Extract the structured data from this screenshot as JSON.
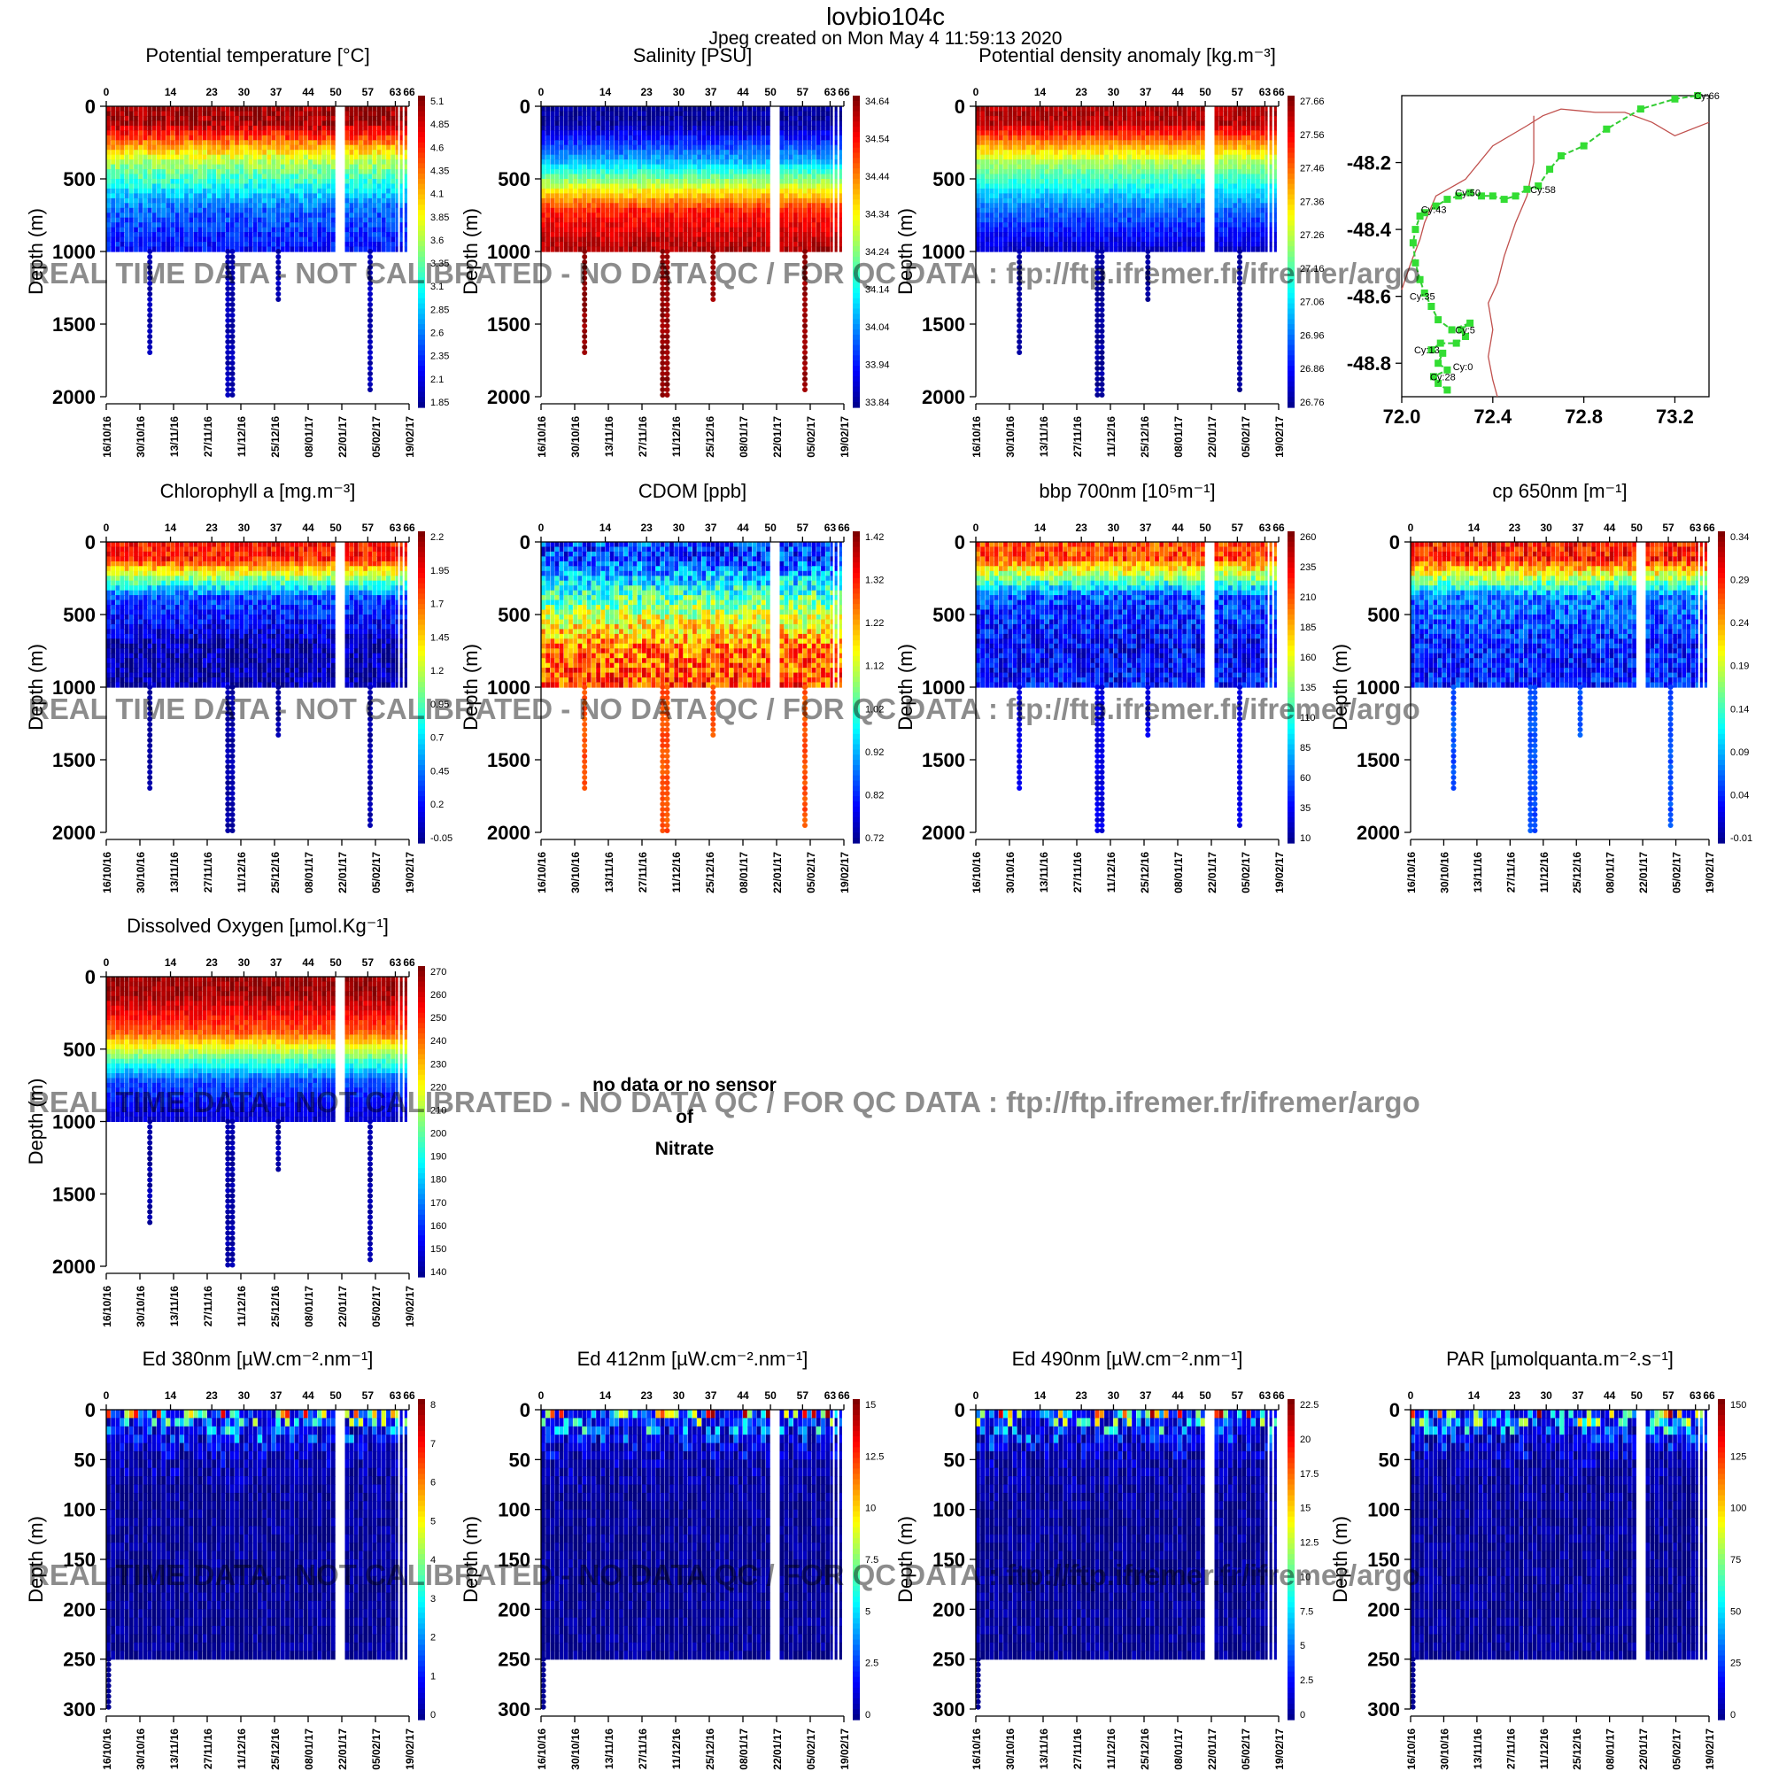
{
  "figure": {
    "title": "lovbio104c",
    "subtitle": "Jpeg created on  Mon May  4 11:59:13 2020",
    "watermark": "REAL TIME DATA - NOT CALIBRATED - NO DATA QC   /  FOR QC DATA : ftp://ftp.ifremer.fr/ifremer/argo",
    "no_data": [
      "no data or no sensor",
      "of",
      "Nitrate"
    ],
    "ylabel": "Depth (m)"
  },
  "chart_data": [
    {
      "id": "temp",
      "type": "heatmap",
      "title": "Potential temperature [°C]",
      "cycle_ticks": [
        "0",
        "14",
        "23",
        "30",
        "37",
        "44",
        "50",
        "57",
        "63",
        "66"
      ],
      "date_ticks": [
        "16/10/16",
        "30/10/16",
        "13/11/16",
        "27/11/16",
        "11/12/16",
        "25/12/16",
        "08/01/17",
        "22/01/17",
        "05/02/17",
        "19/02/17"
      ],
      "ylabel": "Depth (m)",
      "ylim": [
        0,
        2000
      ],
      "yticks": [
        "0",
        "500",
        "1000",
        "1500",
        "2000"
      ],
      "colorbar": [
        "5.1",
        "4.85",
        "4.6",
        "4.35",
        "4.1",
        "3.85",
        "3.6",
        "3.35",
        "3.1",
        "2.85",
        "2.6",
        "2.35",
        "2.1",
        "1.85"
      ],
      "profile": {
        "surface": 0.97,
        "shallow": 0.55,
        "mid": 0.22,
        "deep": 0.12,
        "tail": 0.05,
        "noise": 0.06
      }
    },
    {
      "id": "sal",
      "type": "heatmap",
      "title": "Salinity [PSU]",
      "cycle_ticks": [
        "0",
        "14",
        "23",
        "30",
        "37",
        "44",
        "50",
        "57",
        "63",
        "66"
      ],
      "date_ticks": [
        "16/10/16",
        "30/10/16",
        "13/11/16",
        "27/11/16",
        "11/12/16",
        "25/12/16",
        "08/01/17",
        "22/01/17",
        "05/02/17",
        "19/02/17"
      ],
      "ylabel": "Depth (m)",
      "ylim": [
        0,
        2000
      ],
      "yticks": [
        "0",
        "500",
        "1000",
        "1500",
        "2000"
      ],
      "colorbar": [
        "34.64",
        "34.54",
        "34.44",
        "34.34",
        "34.24",
        "34.14",
        "34.04",
        "33.94",
        "33.84"
      ],
      "profile": {
        "surface": 0.03,
        "shallow": 0.3,
        "mid": 0.85,
        "deep": 0.97,
        "tail": 0.98,
        "noise": 0.04
      }
    },
    {
      "id": "dens",
      "type": "heatmap",
      "title": "Potential density anomaly [kg.m⁻³]",
      "cycle_ticks": [
        "0",
        "14",
        "23",
        "30",
        "37",
        "44",
        "50",
        "57",
        "63",
        "66"
      ],
      "date_ticks": [
        "16/10/16",
        "30/10/16",
        "13/11/16",
        "27/11/16",
        "11/12/16",
        "25/12/16",
        "08/01/17",
        "22/01/17",
        "05/02/17",
        "19/02/17"
      ],
      "ylabel": "Depth (m)",
      "ylim": [
        0,
        2000
      ],
      "yticks": [
        "0",
        "500",
        "1000",
        "1500",
        "2000"
      ],
      "colorbar": [
        "27.66",
        "27.56",
        "27.46",
        "27.36",
        "27.26",
        "27.16",
        "27.06",
        "26.96",
        "26.86",
        "26.76"
      ],
      "profile": {
        "surface": 0.95,
        "shallow": 0.55,
        "mid": 0.22,
        "deep": 0.06,
        "tail": 0.03,
        "noise": 0.04
      }
    },
    {
      "id": "chla",
      "type": "heatmap",
      "title": "Chlorophyll a [mg.m⁻³]",
      "cycle_ticks": [
        "0",
        "14",
        "23",
        "30",
        "37",
        "44",
        "50",
        "57",
        "63",
        "66"
      ],
      "date_ticks": [
        "16/10/16",
        "30/10/16",
        "13/11/16",
        "27/11/16",
        "11/12/16",
        "25/12/16",
        "08/01/17",
        "22/01/17",
        "05/02/17",
        "19/02/17"
      ],
      "ylabel": "Depth (m)",
      "ylim": [
        0,
        2000
      ],
      "yticks": [
        "0",
        "500",
        "1000",
        "1500",
        "2000"
      ],
      "colorbar": [
        "2.2",
        "1.95",
        "1.7",
        "1.45",
        "1.2",
        "0.95",
        "0.7",
        "0.45",
        "0.2",
        "-0.05"
      ],
      "profile": {
        "surface": 0.85,
        "shallow": 0.2,
        "mid": 0.05,
        "deep": 0.04,
        "tail": 0.04,
        "noise": 0.08
      }
    },
    {
      "id": "cdom",
      "type": "heatmap",
      "title": "CDOM  [ppb]",
      "cycle_ticks": [
        "0",
        "14",
        "23",
        "30",
        "37",
        "44",
        "50",
        "57",
        "63",
        "66"
      ],
      "date_ticks": [
        "16/10/16",
        "30/10/16",
        "13/11/16",
        "27/11/16",
        "11/12/16",
        "25/12/16",
        "08/01/17",
        "22/01/17",
        "05/02/17",
        "19/02/17"
      ],
      "ylabel": "Depth (m)",
      "ylim": [
        0,
        2000
      ],
      "yticks": [
        "0",
        "500",
        "1000",
        "1500",
        "2000"
      ],
      "colorbar": [
        "1.42",
        "1.32",
        "1.22",
        "1.12",
        "1.02",
        "0.92",
        "0.82",
        "0.72"
      ],
      "profile": {
        "surface": 0.18,
        "shallow": 0.45,
        "mid": 0.75,
        "deep": 0.82,
        "tail": 0.8,
        "noise": 0.14
      }
    },
    {
      "id": "bbp",
      "type": "heatmap",
      "title": "bbp 700nm [10⁵m⁻¹]",
      "cycle_ticks": [
        "0",
        "14",
        "23",
        "30",
        "37",
        "44",
        "50",
        "57",
        "63",
        "66"
      ],
      "date_ticks": [
        "16/10/16",
        "30/10/16",
        "13/11/16",
        "27/11/16",
        "11/12/16",
        "25/12/16",
        "08/01/17",
        "22/01/17",
        "05/02/17",
        "19/02/17"
      ],
      "ylabel": "Depth (m)",
      "ylim": [
        0,
        2000
      ],
      "yticks": [
        "0",
        "500",
        "1000",
        "1500",
        "2000"
      ],
      "colorbar": [
        "260",
        "235",
        "210",
        "185",
        "160",
        "135",
        "110",
        "85",
        "60",
        "35",
        "10"
      ],
      "profile": {
        "surface": 0.8,
        "shallow": 0.2,
        "mid": 0.12,
        "deep": 0.14,
        "tail": 0.1,
        "noise": 0.1
      }
    },
    {
      "id": "cp",
      "type": "heatmap",
      "title": "cp 650nm [m⁻¹]",
      "cycle_ticks": [
        "0",
        "14",
        "23",
        "30",
        "37",
        "44",
        "50",
        "57",
        "63",
        "66"
      ],
      "date_ticks": [
        "16/10/16",
        "30/10/16",
        "13/11/16",
        "27/11/16",
        "11/12/16",
        "25/12/16",
        "08/01/17",
        "22/01/17",
        "05/02/17",
        "19/02/17"
      ],
      "ylabel": "Depth (m)",
      "ylim": [
        0,
        2000
      ],
      "yticks": [
        "0",
        "500",
        "1000",
        "1500",
        "2000"
      ],
      "colorbar": [
        "0.34",
        "0.29",
        "0.24",
        "0.19",
        "0.14",
        "0.09",
        "0.04",
        "-0.01"
      ],
      "profile": {
        "surface": 0.85,
        "shallow": 0.25,
        "mid": 0.15,
        "deep": 0.15,
        "tail": 0.2,
        "noise": 0.1
      }
    },
    {
      "id": "oxy",
      "type": "heatmap",
      "title": "Dissolved Oxygen [µmol.Kg⁻¹]",
      "cycle_ticks": [
        "0",
        "14",
        "23",
        "30",
        "37",
        "44",
        "50",
        "57",
        "63",
        "66"
      ],
      "date_ticks": [
        "16/10/16",
        "30/10/16",
        "13/11/16",
        "27/11/16",
        "11/12/16",
        "25/12/16",
        "08/01/17",
        "22/01/17",
        "05/02/17",
        "19/02/17"
      ],
      "ylabel": "Depth (m)",
      "ylim": [
        0,
        2000
      ],
      "yticks": [
        "0",
        "500",
        "1000",
        "1500",
        "2000"
      ],
      "colorbar": [
        "270",
        "260",
        "250",
        "240",
        "230",
        "220",
        "210",
        "200",
        "190",
        "180",
        "170",
        "160",
        "150",
        "140"
      ],
      "profile": {
        "surface": 0.97,
        "shallow": 0.8,
        "mid": 0.2,
        "deep": 0.06,
        "tail": 0.04,
        "noise": 0.04
      }
    },
    {
      "id": "ed380",
      "type": "heatmap",
      "title": "Ed 380nm [µW.cm⁻².nm⁻¹]",
      "cycle_ticks": [
        "0",
        "14",
        "23",
        "30",
        "37",
        "44",
        "50",
        "57",
        "63",
        "66"
      ],
      "date_ticks": [
        "16/10/16",
        "30/10/16",
        "13/11/16",
        "27/11/16",
        "11/12/16",
        "25/12/16",
        "08/01/17",
        "22/01/17",
        "05/02/17",
        "19/02/17"
      ],
      "ylabel": "Depth (m)",
      "ylim": [
        0,
        300
      ],
      "yticks": [
        "0",
        "50",
        "100",
        "150",
        "200",
        "250",
        "300"
      ],
      "colorbar": [
        "8",
        "7",
        "6",
        "5",
        "4",
        "3",
        "2",
        "1",
        "0"
      ],
      "profile": {
        "surface": 0.95,
        "shallow": 0.05,
        "mid": 0.02,
        "deep": 0.02,
        "tail": 0.02,
        "noise": 0.05
      }
    },
    {
      "id": "ed412",
      "type": "heatmap",
      "title": "Ed 412nm [µW.cm⁻².nm⁻¹]",
      "cycle_ticks": [
        "0",
        "14",
        "23",
        "30",
        "37",
        "44",
        "50",
        "57",
        "63",
        "66"
      ],
      "date_ticks": [
        "16/10/16",
        "30/10/16",
        "13/11/16",
        "27/11/16",
        "11/12/16",
        "25/12/16",
        "08/01/17",
        "22/01/17",
        "05/02/17",
        "19/02/17"
      ],
      "ylabel": "Depth (m)",
      "ylim": [
        0,
        300
      ],
      "yticks": [
        "0",
        "50",
        "100",
        "150",
        "200",
        "250",
        "300"
      ],
      "colorbar": [
        "15",
        "12.5",
        "10",
        "7.5",
        "5",
        "2.5",
        "0"
      ],
      "profile": {
        "surface": 0.95,
        "shallow": 0.05,
        "mid": 0.02,
        "deep": 0.02,
        "tail": 0.02,
        "noise": 0.05
      }
    },
    {
      "id": "ed490",
      "type": "heatmap",
      "title": "Ed 490nm [µW.cm⁻².nm⁻¹]",
      "cycle_ticks": [
        "0",
        "14",
        "23",
        "30",
        "37",
        "44",
        "50",
        "57",
        "63",
        "66"
      ],
      "date_ticks": [
        "16/10/16",
        "30/10/16",
        "13/11/16",
        "27/11/16",
        "11/12/16",
        "25/12/16",
        "08/01/17",
        "22/01/17",
        "05/02/17",
        "19/02/17"
      ],
      "ylabel": "Depth (m)",
      "ylim": [
        0,
        300
      ],
      "yticks": [
        "0",
        "50",
        "100",
        "150",
        "200",
        "250",
        "300"
      ],
      "colorbar": [
        "22.5",
        "20",
        "17.5",
        "15",
        "12.5",
        "10",
        "7.5",
        "5",
        "2.5",
        "0"
      ],
      "profile": {
        "surface": 0.97,
        "shallow": 0.08,
        "mid": 0.02,
        "deep": 0.02,
        "tail": 0.02,
        "noise": 0.05
      }
    },
    {
      "id": "par",
      "type": "heatmap",
      "title": "PAR [µmolquanta.m⁻².s⁻¹]",
      "cycle_ticks": [
        "0",
        "14",
        "23",
        "30",
        "37",
        "44",
        "50",
        "57",
        "63",
        "66"
      ],
      "date_ticks": [
        "16/10/16",
        "30/10/16",
        "13/11/16",
        "27/11/16",
        "11/12/16",
        "25/12/16",
        "08/01/17",
        "22/01/17",
        "05/02/17",
        "19/02/17"
      ],
      "ylabel": "Depth (m)",
      "ylim": [
        0,
        300
      ],
      "yticks": [
        "0",
        "50",
        "100",
        "150",
        "200",
        "250",
        "300"
      ],
      "colorbar": [
        "150",
        "125",
        "100",
        "75",
        "50",
        "25",
        "0"
      ],
      "profile": {
        "surface": 0.97,
        "shallow": 0.06,
        "mid": 0.02,
        "deep": 0.02,
        "tail": 0.02,
        "noise": 0.05
      }
    },
    {
      "id": "map",
      "type": "scatter",
      "title": "",
      "xticks": [
        "72.0",
        "72.4",
        "72.8",
        "73.2"
      ],
      "xlim": [
        72.0,
        73.35
      ],
      "yticks": [
        "-48.2",
        "-48.4",
        "-48.6",
        "-48.8"
      ],
      "ylim": [
        -48.9,
        -48.0
      ],
      "track": [
        [
          72.2,
          -48.88
        ],
        [
          72.16,
          -48.86
        ],
        [
          72.14,
          -48.84
        ],
        [
          72.2,
          -48.82
        ],
        [
          72.16,
          -48.8
        ],
        [
          72.18,
          -48.77
        ],
        [
          72.13,
          -48.76
        ],
        [
          72.17,
          -48.74
        ],
        [
          72.24,
          -48.74
        ],
        [
          72.28,
          -48.72
        ],
        [
          72.26,
          -48.7
        ],
        [
          72.3,
          -48.68
        ],
        [
          72.22,
          -48.7
        ],
        [
          72.16,
          -48.67
        ],
        [
          72.13,
          -48.63
        ],
        [
          72.1,
          -48.59
        ],
        [
          72.08,
          -48.55
        ],
        [
          72.06,
          -48.5
        ],
        [
          72.05,
          -48.44
        ],
        [
          72.06,
          -48.4
        ],
        [
          72.08,
          -48.36
        ],
        [
          72.1,
          -48.35
        ],
        [
          72.15,
          -48.33
        ],
        [
          72.2,
          -48.31
        ],
        [
          72.25,
          -48.3
        ],
        [
          72.3,
          -48.29
        ],
        [
          72.35,
          -48.3
        ],
        [
          72.4,
          -48.3
        ],
        [
          72.45,
          -48.31
        ],
        [
          72.5,
          -48.3
        ],
        [
          72.55,
          -48.28
        ],
        [
          72.6,
          -48.27
        ],
        [
          72.65,
          -48.22
        ],
        [
          72.7,
          -48.18
        ],
        [
          72.8,
          -48.15
        ],
        [
          72.9,
          -48.1
        ],
        [
          73.05,
          -48.04
        ],
        [
          73.2,
          -48.01
        ],
        [
          73.3,
          -48.0
        ]
      ],
      "labels": [
        {
          "text": "Cy:66",
          "x": 73.3,
          "y": -48.0
        },
        {
          "text": "Cy:58",
          "x": 72.58,
          "y": -48.28
        },
        {
          "text": "Cy:50",
          "x": 72.25,
          "y": -48.29
        },
        {
          "text": "Cy:43",
          "x": 72.1,
          "y": -48.34
        },
        {
          "text": "Cy:35",
          "x": 72.05,
          "y": -48.6
        },
        {
          "text": "Cy:5",
          "x": 72.25,
          "y": -48.7
        },
        {
          "text": "Cy:13",
          "x": 72.07,
          "y": -48.76
        },
        {
          "text": "Cy:0",
          "x": 72.24,
          "y": -48.81
        },
        {
          "text": "Cy:28",
          "x": 72.14,
          "y": -48.84
        }
      ],
      "coast": [
        [
          72.0,
          -48.58
        ],
        [
          72.04,
          -48.5
        ],
        [
          72.08,
          -48.43
        ],
        [
          72.1,
          -48.38
        ],
        [
          72.15,
          -48.3
        ],
        [
          72.28,
          -48.25
        ],
        [
          72.4,
          -48.15
        ],
        [
          72.55,
          -48.09
        ],
        [
          72.62,
          -48.06
        ],
        [
          72.7,
          -48.04
        ],
        [
          72.85,
          -48.05
        ],
        [
          72.98,
          -48.05
        ],
        [
          73.1,
          -48.08
        ],
        [
          73.2,
          -48.12
        ],
        [
          73.35,
          -48.08
        ]
      ],
      "coast2": [
        [
          72.58,
          -48.06
        ],
        [
          72.58,
          -48.2
        ],
        [
          72.55,
          -48.3
        ],
        [
          72.5,
          -48.38
        ],
        [
          72.45,
          -48.48
        ],
        [
          72.42,
          -48.56
        ],
        [
          72.38,
          -48.62
        ],
        [
          72.4,
          -48.7
        ],
        [
          72.38,
          -48.78
        ],
        [
          72.4,
          -48.85
        ],
        [
          72.42,
          -48.9
        ]
      ]
    }
  ]
}
